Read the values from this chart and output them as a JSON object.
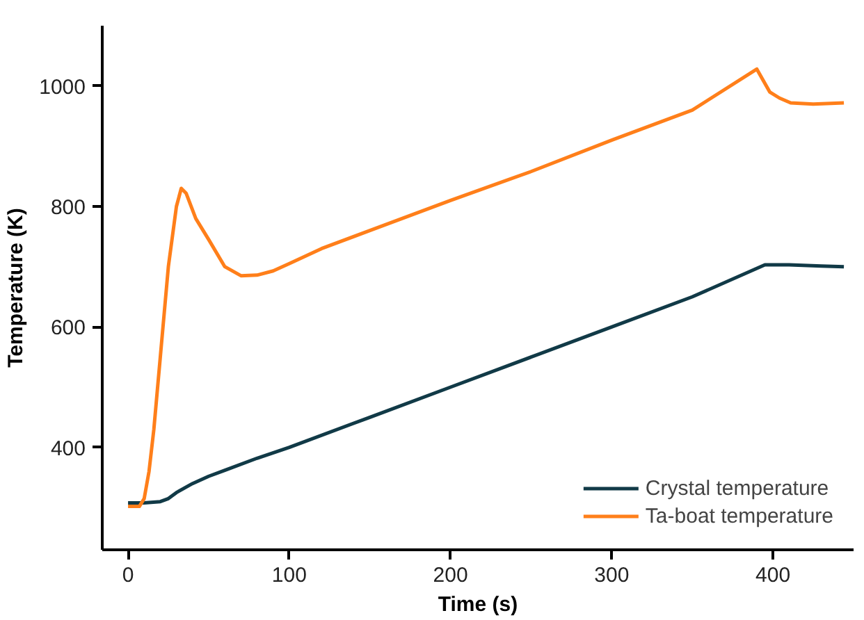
{
  "chart_data": {
    "type": "line",
    "xlabel": "Time (s)",
    "ylabel": "Temperature (K)",
    "xlim": [
      -16,
      450
    ],
    "ylim": [
      230,
      1100
    ],
    "xticks": [
      0,
      100,
      200,
      300,
      400
    ],
    "yticks": [
      400,
      600,
      800,
      1000
    ],
    "grid": false,
    "legend": "bottom right",
    "marker": "none",
    "line_style": "solid",
    "series": [
      {
        "name": "Crystal temperature",
        "color": "#113a47",
        "x": [
          0,
          10,
          20,
          25,
          30,
          40,
          50,
          60,
          80,
          100,
          150,
          200,
          250,
          300,
          350,
          395,
          410,
          430,
          444
        ],
        "values": [
          308,
          308,
          310,
          315,
          325,
          340,
          352,
          362,
          382,
          400,
          450,
          500,
          550,
          600,
          650,
          703,
          703,
          701,
          700
        ]
      },
      {
        "name": "Ta-boat temperature",
        "color": "#ff7f1a",
        "x": [
          0,
          7,
          10,
          13,
          16,
          20,
          25,
          30,
          33,
          36,
          42,
          50,
          60,
          70,
          80,
          90,
          100,
          120,
          150,
          200,
          250,
          300,
          350,
          390,
          398,
          404,
          411,
          425,
          444
        ],
        "values": [
          302,
          302,
          315,
          360,
          430,
          550,
          700,
          800,
          830,
          822,
          780,
          745,
          700,
          685,
          686,
          693,
          705,
          730,
          760,
          810,
          858,
          910,
          960,
          1028,
          990,
          980,
          972,
          970,
          972
        ]
      }
    ]
  }
}
